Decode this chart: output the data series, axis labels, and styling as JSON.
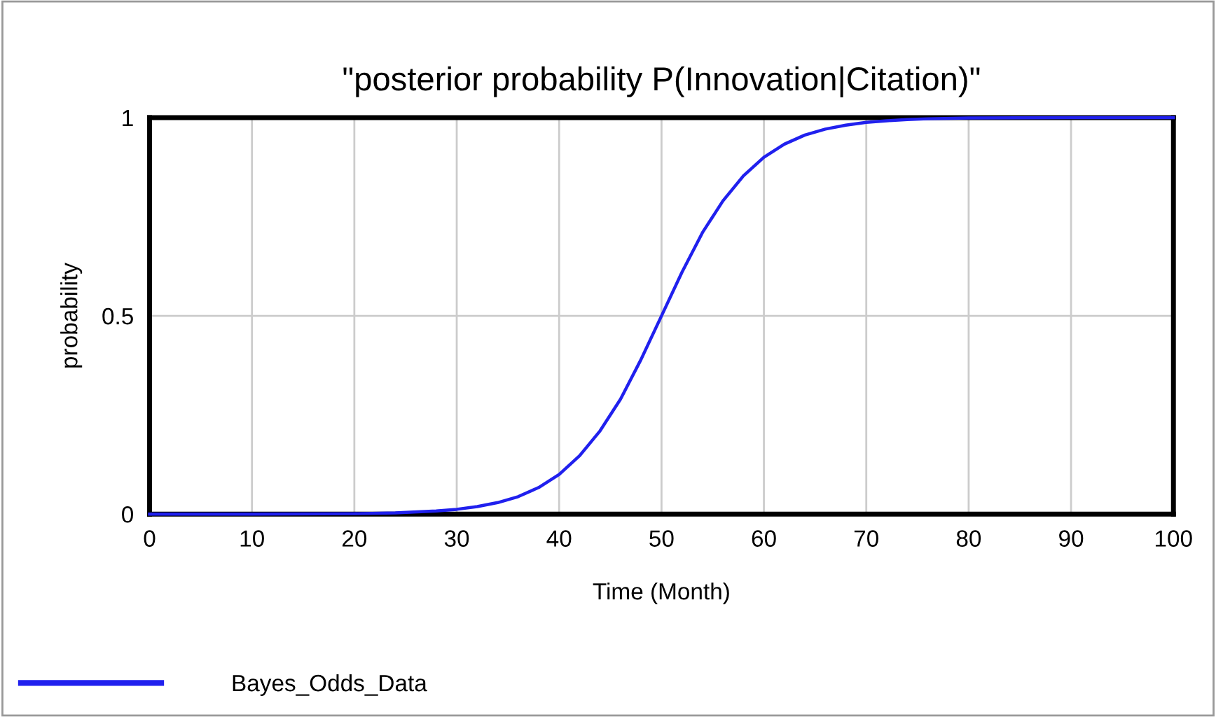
{
  "chart_data": {
    "type": "line",
    "title": "\"posterior probability P(Innovation|Citation)\"",
    "xlabel": "Time (Month)",
    "ylabel": "probability",
    "xlim": [
      0,
      100
    ],
    "xticks": [
      0,
      10,
      20,
      30,
      40,
      50,
      60,
      70,
      80,
      90,
      100
    ],
    "ylim": [
      0,
      1
    ],
    "yticks": [
      0,
      0.5,
      1
    ],
    "grid": true,
    "legend": "bottom left",
    "series": [
      {
        "name": "Bayes_Odds_Data",
        "color": "#2020ee",
        "x": [
          0,
          10,
          20,
          24,
          28,
          30,
          32,
          34,
          36,
          38,
          40,
          42,
          44,
          46,
          48,
          50,
          52,
          54,
          56,
          58,
          60,
          62,
          64,
          66,
          68,
          70,
          72,
          74,
          76,
          80,
          90,
          100
        ],
        "values": [
          0.0,
          0.0,
          0.001,
          0.003,
          0.008,
          0.012,
          0.019,
          0.029,
          0.044,
          0.067,
          0.1,
          0.147,
          0.21,
          0.29,
          0.39,
          0.5,
          0.61,
          0.71,
          0.79,
          0.853,
          0.9,
          0.933,
          0.956,
          0.971,
          0.981,
          0.988,
          0.992,
          0.995,
          0.997,
          0.999,
          1.0,
          1.0
        ]
      }
    ]
  }
}
